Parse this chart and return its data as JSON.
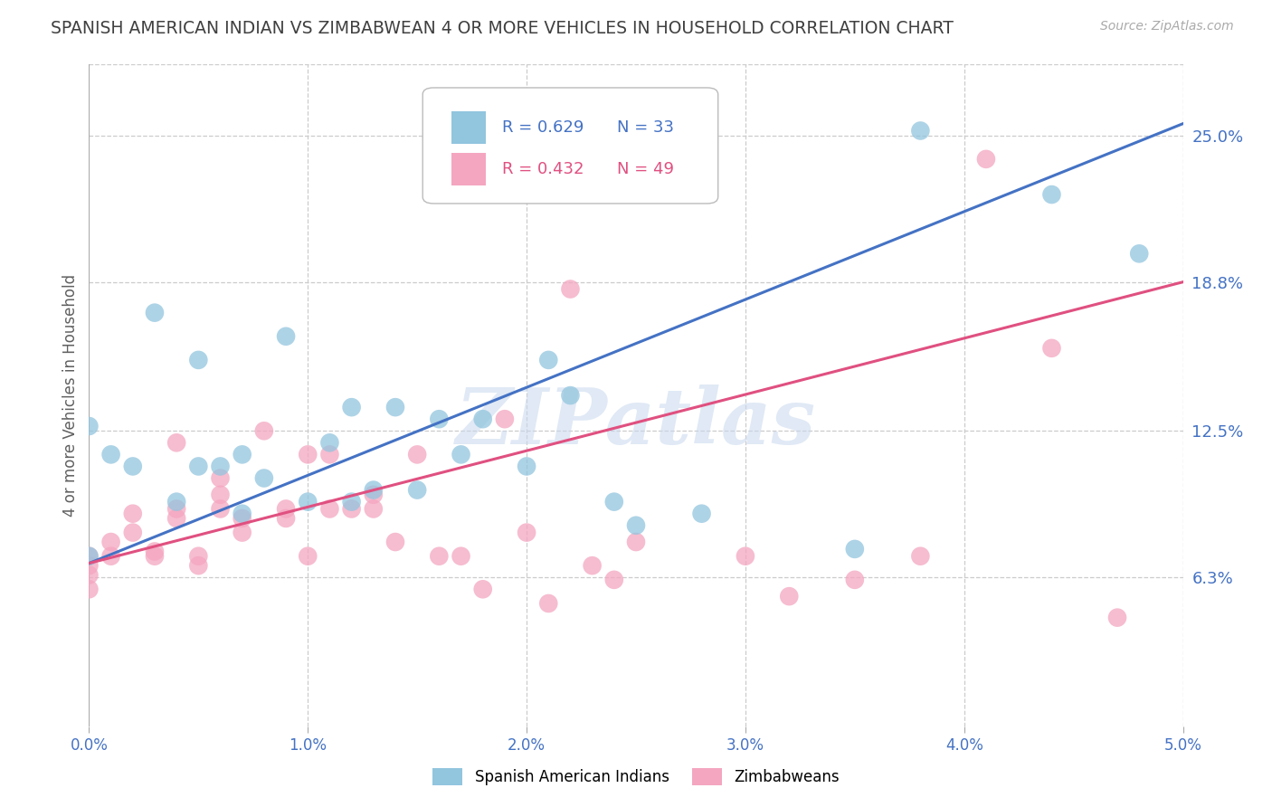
{
  "title": "SPANISH AMERICAN INDIAN VS ZIMBABWEAN 4 OR MORE VEHICLES IN HOUSEHOLD CORRELATION CHART",
  "source": "Source: ZipAtlas.com",
  "ylabel": "4 or more Vehicles in Household",
  "xlim": [
    0.0,
    0.05
  ],
  "ylim": [
    0.0,
    0.28
  ],
  "xticks": [
    0.0,
    0.01,
    0.02,
    0.03,
    0.04,
    0.05
  ],
  "xticklabels": [
    "0.0%",
    "1.0%",
    "2.0%",
    "3.0%",
    "4.0%",
    "5.0%"
  ],
  "ytick_right_values": [
    0.063,
    0.125,
    0.188,
    0.25
  ],
  "ytick_right_labels": [
    "6.3%",
    "12.5%",
    "18.8%",
    "25.0%"
  ],
  "blue_label": "Spanish American Indians",
  "pink_label": "Zimbabweans",
  "blue_color": "#92c5de",
  "pink_color": "#f4a6c0",
  "blue_line_color": "#4472c4",
  "pink_line_color": "#e05080",
  "legend_r_blue": "R = 0.629",
  "legend_n_blue": "N = 33",
  "legend_r_pink": "R = 0.432",
  "legend_n_pink": "N = 49",
  "watermark": "ZIPatlas",
  "blue_line_x": [
    0.0,
    0.05
  ],
  "blue_line_y": [
    0.069,
    0.255
  ],
  "pink_line_x": [
    0.0,
    0.05
  ],
  "pink_line_y": [
    0.069,
    0.188
  ],
  "blue_scatter_x": [
    0.0,
    0.0,
    0.001,
    0.002,
    0.003,
    0.004,
    0.005,
    0.005,
    0.006,
    0.007,
    0.007,
    0.008,
    0.009,
    0.01,
    0.011,
    0.012,
    0.012,
    0.013,
    0.014,
    0.015,
    0.016,
    0.017,
    0.018,
    0.02,
    0.021,
    0.022,
    0.024,
    0.025,
    0.028,
    0.035,
    0.038,
    0.044,
    0.048
  ],
  "blue_scatter_y": [
    0.127,
    0.072,
    0.115,
    0.11,
    0.175,
    0.095,
    0.11,
    0.155,
    0.11,
    0.09,
    0.115,
    0.105,
    0.165,
    0.095,
    0.12,
    0.135,
    0.095,
    0.1,
    0.135,
    0.1,
    0.13,
    0.115,
    0.13,
    0.11,
    0.155,
    0.14,
    0.095,
    0.085,
    0.09,
    0.075,
    0.252,
    0.225,
    0.2
  ],
  "pink_scatter_x": [
    0.0,
    0.0,
    0.0,
    0.0,
    0.001,
    0.001,
    0.002,
    0.002,
    0.003,
    0.003,
    0.004,
    0.004,
    0.004,
    0.005,
    0.005,
    0.006,
    0.006,
    0.006,
    0.007,
    0.007,
    0.008,
    0.009,
    0.009,
    0.01,
    0.01,
    0.011,
    0.011,
    0.012,
    0.013,
    0.013,
    0.014,
    0.015,
    0.016,
    0.017,
    0.018,
    0.019,
    0.02,
    0.021,
    0.022,
    0.023,
    0.024,
    0.025,
    0.03,
    0.032,
    0.035,
    0.038,
    0.041,
    0.044,
    0.047
  ],
  "pink_scatter_y": [
    0.072,
    0.068,
    0.064,
    0.058,
    0.078,
    0.072,
    0.09,
    0.082,
    0.072,
    0.074,
    0.12,
    0.092,
    0.088,
    0.072,
    0.068,
    0.105,
    0.098,
    0.092,
    0.088,
    0.082,
    0.125,
    0.092,
    0.088,
    0.072,
    0.115,
    0.115,
    0.092,
    0.092,
    0.098,
    0.092,
    0.078,
    0.115,
    0.072,
    0.072,
    0.058,
    0.13,
    0.082,
    0.052,
    0.185,
    0.068,
    0.062,
    0.078,
    0.072,
    0.055,
    0.062,
    0.072,
    0.24,
    0.16,
    0.046
  ],
  "background_color": "#ffffff",
  "grid_color": "#cccccc",
  "title_color": "#404040",
  "axis_label_color": "#606060",
  "right_tick_color": "#4472c4",
  "bottom_tick_color": "#4472c4",
  "figsize": [
    14.06,
    8.92
  ],
  "dpi": 100
}
